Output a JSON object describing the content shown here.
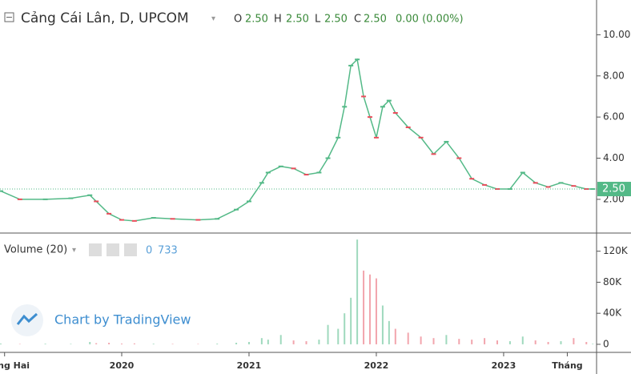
{
  "header": {
    "title": "Cảng Cái Lân, D, UPCOM",
    "o_label": "O",
    "o": "2.50",
    "h_label": "H",
    "h": "2.50",
    "l_label": "L",
    "l": "2.50",
    "c_label": "C",
    "c": "2.50",
    "change": "0.00 (0.00%)"
  },
  "volume_header": {
    "title": "Volume (20)",
    "value_a": "0",
    "value_b": "733"
  },
  "watermark": "Chart by TradingView",
  "chart_data": [
    {
      "type": "line",
      "name": "price",
      "x": [
        2019.05,
        2019.2,
        2019.4,
        2019.6,
        2019.75,
        2019.8,
        2019.9,
        2020.0,
        2020.1,
        2020.25,
        2020.4,
        2020.6,
        2020.75,
        2020.9,
        2021.0,
        2021.1,
        2021.15,
        2021.25,
        2021.35,
        2021.45,
        2021.55,
        2021.62,
        2021.7,
        2021.75,
        2021.8,
        2021.85,
        2021.9,
        2021.95,
        2022.0,
        2022.05,
        2022.1,
        2022.15,
        2022.25,
        2022.35,
        2022.45,
        2022.55,
        2022.65,
        2022.75,
        2022.85,
        2022.95,
        2023.05,
        2023.15,
        2023.25,
        2023.35,
        2023.45,
        2023.55,
        2023.65,
        2023.7
      ],
      "series": [
        {
          "name": "Close",
          "color": "#53b987",
          "values": [
            2.4,
            2.0,
            2.0,
            2.05,
            2.2,
            1.9,
            1.3,
            1.0,
            0.95,
            1.1,
            1.05,
            1.0,
            1.05,
            1.5,
            1.9,
            2.8,
            3.3,
            3.6,
            3.5,
            3.2,
            3.3,
            4.0,
            5.0,
            6.5,
            8.5,
            8.8,
            7.0,
            6.0,
            5.0,
            6.5,
            6.8,
            6.2,
            5.5,
            5.0,
            4.2,
            4.8,
            4.0,
            3.0,
            2.7,
            2.5,
            2.5,
            3.3,
            2.8,
            2.6,
            2.8,
            2.65,
            2.5,
            2.5
          ]
        }
      ],
      "last_price": {
        "value": 2.5,
        "label": "2.50"
      },
      "down_color": "#eb4d5c",
      "xlim": [
        2019.044,
        2023.73
      ],
      "xticks": [
        {
          "value": 2019.08,
          "label": "Tháng Hai"
        },
        {
          "value": 2020.0,
          "label": "2020"
        },
        {
          "value": 2021.0,
          "label": "2021"
        },
        {
          "value": 2022.0,
          "label": "2022"
        },
        {
          "value": 2023.0,
          "label": "2023"
        },
        {
          "value": 2023.5,
          "label": "Tháng"
        }
      ],
      "ylim": [
        0.36,
        11.69
      ],
      "yticks": [
        {
          "value": 2,
          "label": "2.00"
        },
        {
          "value": 4,
          "label": "4.00"
        },
        {
          "value": 6,
          "label": "6.00"
        },
        {
          "value": 8,
          "label": "8.00"
        },
        {
          "value": 10,
          "label": "10.00"
        }
      ]
    },
    {
      "type": "bar",
      "name": "volume",
      "x": [
        2019.05,
        2019.2,
        2019.4,
        2019.6,
        2019.75,
        2019.8,
        2019.9,
        2020.0,
        2020.1,
        2020.25,
        2020.4,
        2020.6,
        2020.75,
        2020.9,
        2021.0,
        2021.1,
        2021.15,
        2021.25,
        2021.35,
        2021.45,
        2021.55,
        2021.62,
        2021.7,
        2021.75,
        2021.8,
        2021.85,
        2021.9,
        2021.95,
        2022.0,
        2022.05,
        2022.1,
        2022.15,
        2022.25,
        2022.35,
        2022.45,
        2022.55,
        2022.65,
        2022.75,
        2022.85,
        2022.95,
        2023.05,
        2023.15,
        2023.25,
        2023.35,
        2023.45,
        2023.55,
        2023.65,
        2023.7
      ],
      "series": [
        {
          "name": "Volume",
          "color": "#9fd9bd",
          "values": [
            1000,
            500,
            800,
            600,
            3000,
            1500,
            2000,
            1000,
            1200,
            800,
            600,
            500,
            900,
            2000,
            3000,
            8000,
            6000,
            12000,
            5000,
            4000,
            6000,
            25000,
            20000,
            40000,
            60000,
            135000,
            95000,
            90000,
            85000,
            50000,
            30000,
            20000,
            15000,
            10000,
            8000,
            12000,
            7000,
            6000,
            8000,
            5000,
            4000,
            10000,
            5000,
            3000,
            4000,
            8000,
            3000,
            733
          ]
        }
      ],
      "ylim": [
        -10400,
        143400
      ],
      "yticks": [
        0,
        {
          "value": 40000,
          "label": "40K"
        },
        {
          "value": 80000,
          "label": "80K"
        },
        {
          "value": 120000,
          "label": "120K"
        }
      ]
    }
  ]
}
